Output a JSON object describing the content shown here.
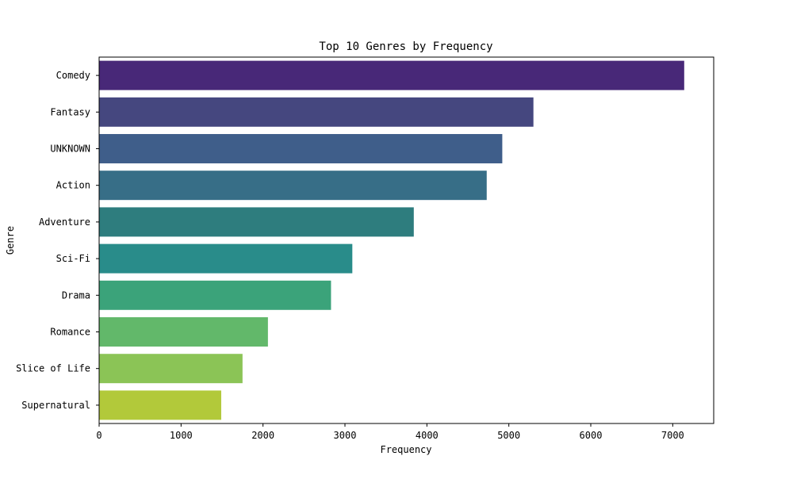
{
  "chart_data": {
    "type": "bar",
    "orientation": "horizontal",
    "title": "Top 10 Genres by Frequency",
    "xlabel": "Frequency",
    "ylabel": "Genre",
    "categories": [
      "Comedy",
      "Fantasy",
      "UNKNOWN",
      "Action",
      "Adventure",
      "Sci-Fi",
      "Drama",
      "Romance",
      "Slice of Life",
      "Supernatural"
    ],
    "values": [
      7140,
      5300,
      4920,
      4730,
      3840,
      3090,
      2830,
      2060,
      1750,
      1490
    ],
    "colors": [
      "#482878",
      "#45477f",
      "#3f5e8a",
      "#376e87",
      "#2e7d7e",
      "#298c8a",
      "#3ba37a",
      "#62b86a",
      "#8bc456",
      "#b2c93a"
    ],
    "xlim": [
      0,
      7500
    ],
    "xticks": [
      0,
      1000,
      2000,
      3000,
      4000,
      5000,
      6000,
      7000
    ],
    "grid": false,
    "legend": "none"
  }
}
